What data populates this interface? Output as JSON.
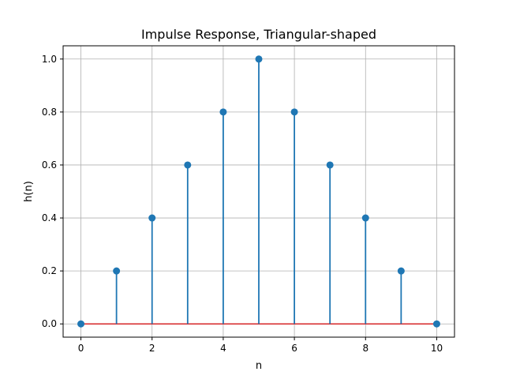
{
  "chart_data": {
    "type": "stem",
    "title": "Impulse Response, Triangular-shaped",
    "xlabel": "n",
    "ylabel": "h(n)",
    "x": [
      0,
      1,
      2,
      3,
      4,
      5,
      6,
      7,
      8,
      9,
      10
    ],
    "y": [
      0.0,
      0.2,
      0.4,
      0.6,
      0.8,
      1.0,
      0.8,
      0.6,
      0.4,
      0.2,
      0.0
    ],
    "xlim": [
      -0.5,
      10.5
    ],
    "ylim": [
      -0.05,
      1.05
    ],
    "xticks": [
      0,
      2,
      4,
      6,
      8,
      10
    ],
    "xtick_labels": [
      "0",
      "2",
      "4",
      "6",
      "8",
      "10"
    ],
    "yticks": [
      0.0,
      0.2,
      0.4,
      0.6,
      0.8,
      1.0
    ],
    "ytick_labels": [
      "0.0",
      "0.2",
      "0.4",
      "0.6",
      "0.8",
      "1.0"
    ],
    "grid": true,
    "color": "#1f77b4"
  }
}
